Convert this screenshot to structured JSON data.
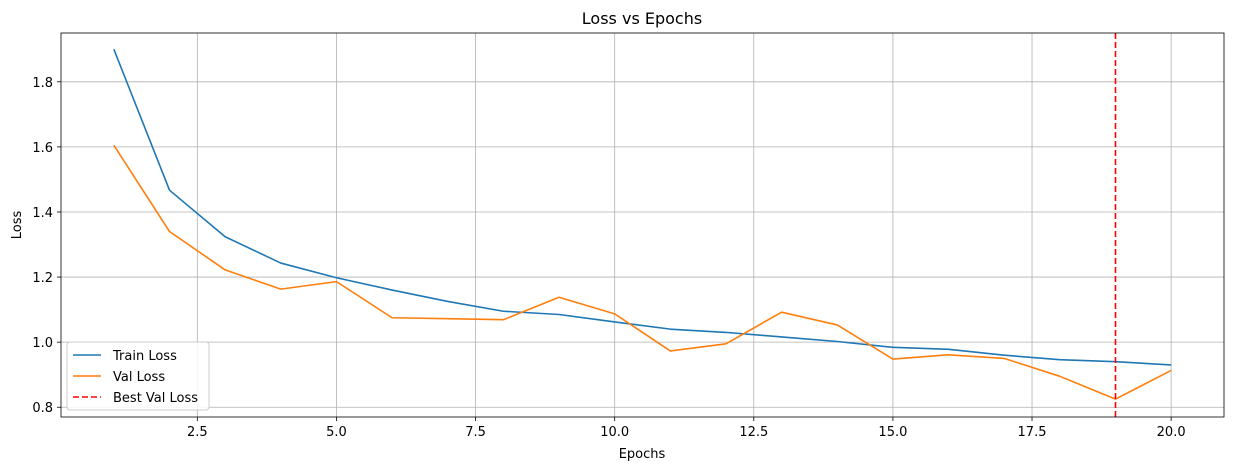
{
  "chart_data": {
    "type": "line",
    "title": "Loss vs Epochs",
    "xlabel": "Epochs",
    "ylabel": "Loss",
    "xlim": [
      0.05,
      20.95
    ],
    "ylim": [
      0.77,
      1.95
    ],
    "grid": true,
    "x": [
      1,
      2,
      3,
      4,
      5,
      6,
      7,
      8,
      9,
      10,
      11,
      12,
      13,
      14,
      15,
      16,
      17,
      18,
      19,
      20
    ],
    "series": [
      {
        "name": "Train Loss",
        "color": "#1f77b4",
        "values": [
          1.9,
          1.467,
          1.324,
          1.243,
          1.198,
          1.16,
          1.125,
          1.095,
          1.085,
          1.062,
          1.04,
          1.03,
          1.016,
          1.002,
          0.984,
          0.978,
          0.96,
          0.946,
          0.94,
          0.93
        ]
      },
      {
        "name": "Val Loss",
        "color": "#ff7f0e",
        "values": [
          1.605,
          1.34,
          1.222,
          1.163,
          1.186,
          1.075,
          1.072,
          1.069,
          1.138,
          1.087,
          0.973,
          0.995,
          1.092,
          1.053,
          0.948,
          0.961,
          0.95,
          0.895,
          0.825,
          0.913
        ]
      }
    ],
    "vlines": [
      {
        "name": "Best Val Loss",
        "x": 19,
        "color": "#ff0000",
        "style": "dashed"
      }
    ],
    "xticks": [
      2.5,
      5.0,
      7.5,
      10.0,
      12.5,
      15.0,
      17.5,
      20.0
    ],
    "xtick_labels": [
      "2.5",
      "5.0",
      "7.5",
      "10.0",
      "12.5",
      "15.0",
      "17.5",
      "20.0"
    ],
    "yticks": [
      0.8,
      1.0,
      1.2,
      1.4,
      1.6,
      1.8
    ],
    "ytick_labels": [
      "0.8",
      "1.0",
      "1.2",
      "1.4",
      "1.6",
      "1.8"
    ],
    "legend": {
      "placement": "lower-left",
      "entries": [
        "Train Loss",
        "Val Loss",
        "Best Val Loss"
      ]
    }
  }
}
